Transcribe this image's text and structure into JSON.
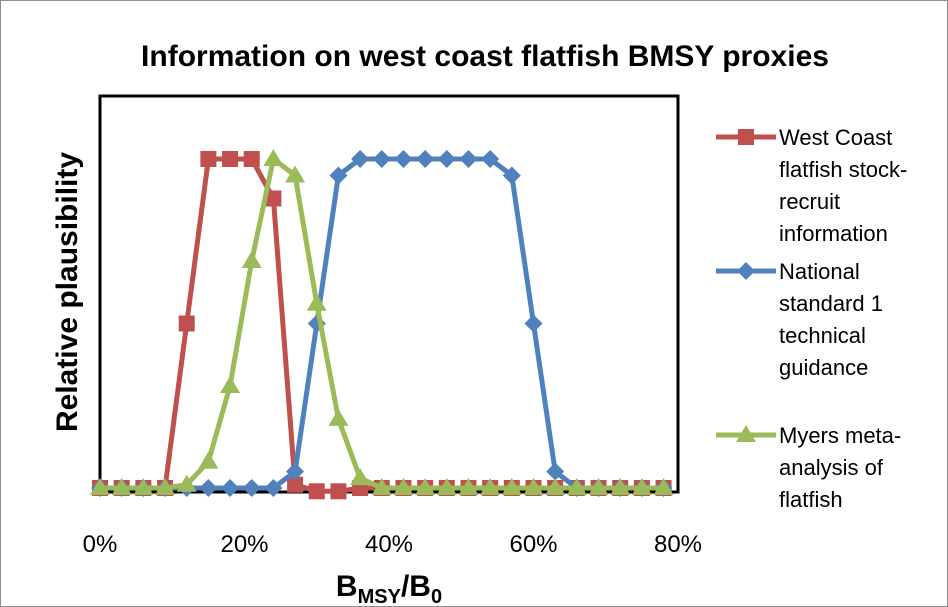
{
  "chart_data": {
    "type": "line",
    "title": "Information on west coast flatfish BMSY proxies",
    "ylabel": "Relative plausibility",
    "xlabel": {
      "main": "B",
      "sub1": "MSY",
      "slash": "/B",
      "sub2": "0"
    },
    "xlim": [
      0,
      0.8
    ],
    "ylim": [
      0,
      1.05
    ],
    "xticks": [
      0,
      0.2,
      0.4,
      0.6,
      0.8
    ],
    "xtick_labels": [
      "0%",
      "20%",
      "40%",
      "60%",
      "80%"
    ],
    "legend_position": "right",
    "grid": false,
    "series": [
      {
        "name": "West Coast flatfish stock-recruit information",
        "legend_lines": [
          "West Coast",
          "flatfish stock-",
          "recruit",
          "information"
        ],
        "color": "#C0504D",
        "marker": "square",
        "points": [
          [
            0.0,
            0
          ],
          [
            0.03,
            0
          ],
          [
            0.06,
            0
          ],
          [
            0.09,
            0
          ],
          [
            0.12,
            0.5
          ],
          [
            0.15,
            1.0
          ],
          [
            0.18,
            1.0
          ],
          [
            0.21,
            1.0
          ],
          [
            0.24,
            0.88
          ],
          [
            0.27,
            0.01
          ],
          [
            0.3,
            -0.01
          ],
          [
            0.33,
            -0.01
          ],
          [
            0.36,
            0
          ],
          [
            0.39,
            0
          ],
          [
            0.42,
            0
          ],
          [
            0.45,
            0
          ],
          [
            0.48,
            0
          ],
          [
            0.51,
            0
          ],
          [
            0.54,
            0
          ],
          [
            0.57,
            0
          ],
          [
            0.6,
            0
          ],
          [
            0.63,
            0
          ],
          [
            0.66,
            0
          ],
          [
            0.69,
            0
          ],
          [
            0.72,
            0
          ],
          [
            0.75,
            0
          ],
          [
            0.78,
            0
          ]
        ]
      },
      {
        "name": "National standard 1 technical guidance",
        "legend_lines": [
          "National",
          "standard 1",
          "technical",
          "guidance"
        ],
        "color": "#4F81BD",
        "marker": "diamond",
        "points": [
          [
            0.0,
            0
          ],
          [
            0.03,
            0
          ],
          [
            0.06,
            0
          ],
          [
            0.09,
            0
          ],
          [
            0.12,
            0
          ],
          [
            0.15,
            0
          ],
          [
            0.18,
            0
          ],
          [
            0.21,
            0
          ],
          [
            0.24,
            0
          ],
          [
            0.27,
            0.05
          ],
          [
            0.3,
            0.5
          ],
          [
            0.33,
            0.95
          ],
          [
            0.36,
            1.0
          ],
          [
            0.39,
            1.0
          ],
          [
            0.42,
            1.0
          ],
          [
            0.45,
            1.0
          ],
          [
            0.48,
            1.0
          ],
          [
            0.51,
            1.0
          ],
          [
            0.54,
            1.0
          ],
          [
            0.57,
            0.95
          ],
          [
            0.6,
            0.5
          ],
          [
            0.63,
            0.05
          ],
          [
            0.66,
            0
          ],
          [
            0.69,
            0
          ],
          [
            0.72,
            0
          ],
          [
            0.75,
            0
          ],
          [
            0.78,
            0
          ]
        ]
      },
      {
        "name": "Myers meta-analysis of flatfish",
        "legend_lines": [
          "Myers meta-",
          "analysis of",
          "flatfish"
        ],
        "color": "#9BBB59",
        "marker": "triangle",
        "points": [
          [
            0.0,
            0
          ],
          [
            0.03,
            0
          ],
          [
            0.06,
            0
          ],
          [
            0.09,
            0
          ],
          [
            0.12,
            0.01
          ],
          [
            0.15,
            0.08
          ],
          [
            0.18,
            0.31
          ],
          [
            0.21,
            0.69
          ],
          [
            0.24,
            1.0
          ],
          [
            0.27,
            0.95
          ],
          [
            0.3,
            0.56
          ],
          [
            0.33,
            0.21
          ],
          [
            0.36,
            0.03
          ],
          [
            0.39,
            0
          ],
          [
            0.42,
            0
          ],
          [
            0.45,
            0
          ],
          [
            0.48,
            0
          ],
          [
            0.51,
            0
          ],
          [
            0.54,
            0
          ],
          [
            0.57,
            0
          ],
          [
            0.6,
            0
          ],
          [
            0.63,
            0
          ],
          [
            0.66,
            0
          ],
          [
            0.69,
            0
          ],
          [
            0.72,
            0
          ],
          [
            0.75,
            0
          ],
          [
            0.78,
            0
          ]
        ]
      }
    ]
  }
}
